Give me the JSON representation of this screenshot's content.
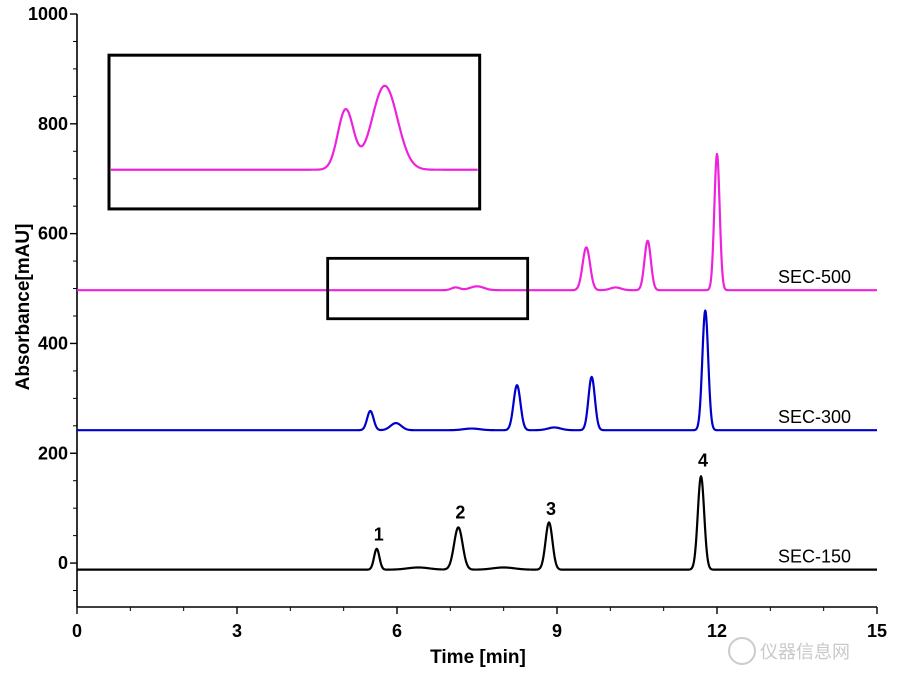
{
  "chart_data": {
    "type": "line",
    "xlabel": "Time [min]",
    "ylabel": "Absorbance[mAU]",
    "xlim": [
      0,
      15
    ],
    "ylim": [
      -80,
      1000
    ],
    "xticks": [
      "0",
      "3",
      "6",
      "9",
      "12",
      "15"
    ],
    "yticks": [
      "0",
      "200",
      "400",
      "600",
      "800",
      "1000"
    ],
    "grid": false,
    "series": [
      {
        "name": "SEC-150",
        "color": "#000000",
        "baseline": -12,
        "peaks": [
          {
            "t": 5.62,
            "h": 38,
            "w": 0.05
          },
          {
            "t": 6.4,
            "h": 4,
            "w": 0.2
          },
          {
            "t": 7.15,
            "h": 77,
            "w": 0.08
          },
          {
            "t": 8.0,
            "h": 4,
            "w": 0.2
          },
          {
            "t": 8.85,
            "h": 86,
            "w": 0.065
          },
          {
            "t": 11.7,
            "h": 170,
            "w": 0.06
          }
        ]
      },
      {
        "name": "SEC-300",
        "color": "#0000cc",
        "baseline": 242,
        "peaks": [
          {
            "t": 5.5,
            "h": 35,
            "w": 0.06
          },
          {
            "t": 5.98,
            "h": 13,
            "w": 0.1
          },
          {
            "t": 7.4,
            "h": 3,
            "w": 0.15
          },
          {
            "t": 8.25,
            "h": 82,
            "w": 0.065
          },
          {
            "t": 8.95,
            "h": 5,
            "w": 0.12
          },
          {
            "t": 9.65,
            "h": 97,
            "w": 0.06
          },
          {
            "t": 11.78,
            "h": 218,
            "w": 0.055
          }
        ]
      },
      {
        "name": "SEC-500",
        "color": "#ee22dd",
        "baseline": 497,
        "peaks": [
          {
            "t": 7.1,
            "h": 5,
            "w": 0.08
          },
          {
            "t": 7.5,
            "h": 7,
            "w": 0.13
          },
          {
            "t": 9.55,
            "h": 78,
            "w": 0.07
          },
          {
            "t": 10.1,
            "h": 5,
            "w": 0.1
          },
          {
            "t": 10.7,
            "h": 90,
            "w": 0.06
          },
          {
            "t": 12.0,
            "h": 248,
            "w": 0.05
          }
        ]
      }
    ],
    "peak_labels": [
      {
        "text": "1",
        "x": 5.62,
        "y": 30
      },
      {
        "text": "2",
        "x": 7.15,
        "y": 70
      },
      {
        "text": "3",
        "x": 8.85,
        "y": 77
      },
      {
        "text": "4",
        "x": 11.7,
        "y": 165
      }
    ],
    "annotations": [
      {
        "type": "box",
        "x0": 4.7,
        "x1": 8.45,
        "y0": 445,
        "y1": 555
      }
    ],
    "inset": {
      "x0": 0.6,
      "x1": 7.55,
      "y0": 645,
      "y1": 925,
      "trace_color": "#ee22dd",
      "source_box": {
        "x0": 4.7,
        "x1": 8.45
      },
      "baseline": 497,
      "gain": 10,
      "min_offset": -10
    }
  },
  "watermark": {
    "text": "仪器信息网"
  }
}
